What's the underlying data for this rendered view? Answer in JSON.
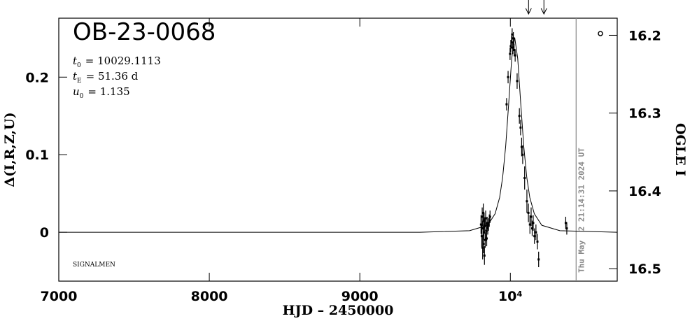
{
  "chart_data": {
    "type": "scatter",
    "title": "OB-23-0068",
    "parameters": [
      {
        "symbol": "t",
        "subscript": "0",
        "text": "= 10029.1113"
      },
      {
        "symbol": "t",
        "subscript": "E",
        "text": "= 51.36 d"
      },
      {
        "symbol": "u",
        "subscript": "0",
        "text": "= 1.135"
      }
    ],
    "credit": "SIGNALMEN",
    "xlabel": "HJD – 2450000",
    "ylabel": "Δ(I,R,Z,U)",
    "y2label": "OGLE I",
    "xlim": [
      7000,
      10710
    ],
    "ylim": [
      -0.063,
      0.276
    ],
    "y2lim": [
      16.516,
      16.178
    ],
    "xticks": [
      7000,
      8000,
      9000,
      {
        "value": 10000,
        "label": "10⁴"
      }
    ],
    "yticks": [
      0,
      0.1,
      0.2
    ],
    "y2ticks": [
      16.2,
      16.3,
      16.4,
      16.5
    ],
    "now_line": {
      "x": 10437,
      "label": "Thu May  2 21:14:31 2024 UT",
      "color": "#888888"
    },
    "arrows_x": [
      10121,
      10223
    ],
    "model": {
      "color": "#000000",
      "x": [
        7000,
        9400,
        9729,
        9849,
        9899,
        9929,
        9949,
        9969,
        9989,
        10009,
        10029,
        10049,
        10069,
        10089,
        10109,
        10129,
        10159,
        10209,
        10329,
        10710
      ],
      "values": [
        0,
        0,
        0.002,
        0.009,
        0.024,
        0.045,
        0.071,
        0.111,
        0.166,
        0.224,
        0.251,
        0.224,
        0.166,
        0.111,
        0.071,
        0.045,
        0.024,
        0.009,
        0.002,
        0
      ]
    },
    "series": [
      {
        "color": "#000000",
        "x": [
          9805,
          9810,
          9813,
          9816,
          9818,
          9820,
          9822,
          9824,
          9826,
          9828,
          9830,
          9833,
          9836,
          9840,
          9843,
          9846,
          9850,
          9855,
          9860,
          9865,
          9975,
          9985,
          9998,
          10003,
          10008,
          10012,
          10016,
          10020,
          10025,
          10032,
          10045,
          10060,
          10068,
          10075,
          10082,
          10095,
          10110,
          10120,
          10130,
          10138,
          10145,
          10152,
          10160,
          10170,
          10180,
          10188,
          10368,
          10375
        ],
        "values": [
          0.01,
          -0.005,
          0.02,
          -0.02,
          0.005,
          0.025,
          -0.015,
          0.0,
          0.015,
          -0.03,
          0.008,
          -0.01,
          0.018,
          0.002,
          -0.008,
          0.012,
          0.005,
          0.01,
          0.015,
          0.02,
          0.165,
          0.2,
          0.23,
          0.24,
          0.245,
          0.255,
          0.238,
          0.25,
          0.235,
          0.228,
          0.195,
          0.15,
          0.135,
          0.11,
          0.1,
          0.07,
          0.04,
          0.025,
          0.01,
          0.02,
          0.005,
          0.012,
          -0.005,
          0.0,
          -0.012,
          -0.035,
          0.012,
          0.005
        ],
        "errors": [
          0.012,
          0.015,
          0.012,
          0.015,
          0.01,
          0.012,
          0.012,
          0.01,
          0.01,
          0.012,
          0.01,
          0.01,
          0.01,
          0.01,
          0.01,
          0.008,
          0.008,
          0.008,
          0.008,
          0.008,
          0.008,
          0.008,
          0.008,
          0.008,
          0.008,
          0.008,
          0.008,
          0.008,
          0.008,
          0.008,
          0.01,
          0.01,
          0.01,
          0.012,
          0.012,
          0.015,
          0.015,
          0.012,
          0.012,
          0.012,
          0.01,
          0.01,
          0.01,
          0.01,
          0.01,
          0.01,
          0.008,
          0.008
        ]
      }
    ]
  }
}
